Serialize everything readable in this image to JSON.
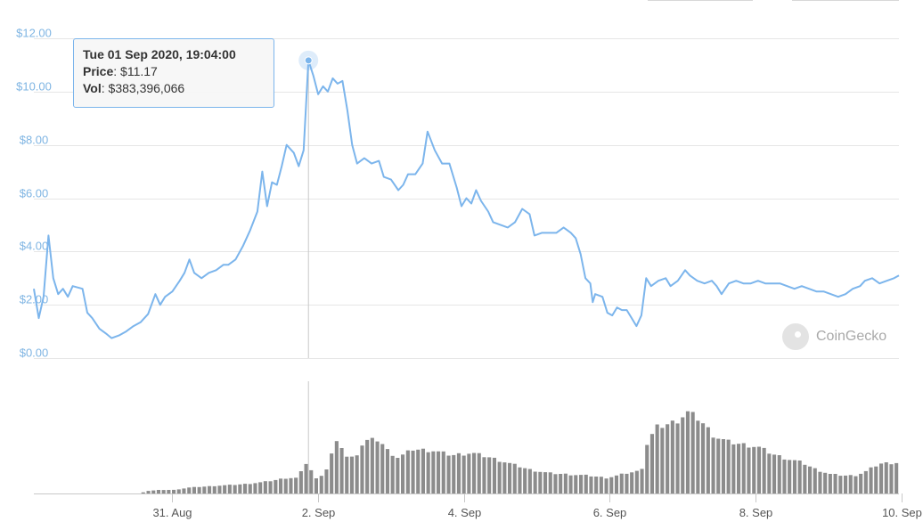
{
  "tooltip": {
    "date": "Tue 01 Sep 2020, 19:04:00",
    "price_label": "Price",
    "price_value": "$11.17",
    "vol_label": "Vol",
    "vol_value": "$383,396,066"
  },
  "watermark": "CoinGecko",
  "colors": {
    "line": "#7cb5ec",
    "volume": "#8c8c8c",
    "grid": "#e6e6e6",
    "axis_text": "#7fb5e3"
  },
  "chart_data": [
    {
      "type": "line",
      "title": "",
      "series": [
        {
          "values": [
            [
              0.0,
              2.6
            ],
            [
              0.1,
              1.5
            ],
            [
              0.2,
              2.3
            ],
            [
              0.3,
              4.6
            ],
            [
              0.4,
              3.0
            ],
            [
              0.5,
              2.4
            ],
            [
              0.6,
              2.6
            ],
            [
              0.7,
              2.3
            ],
            [
              0.8,
              2.7
            ],
            [
              1.0,
              2.6
            ],
            [
              1.1,
              1.7
            ],
            [
              1.2,
              1.5
            ],
            [
              1.35,
              1.1
            ],
            [
              1.5,
              0.9
            ],
            [
              1.6,
              0.75
            ],
            [
              1.75,
              0.85
            ],
            [
              1.9,
              1.0
            ],
            [
              2.05,
              1.2
            ],
            [
              2.2,
              1.35
            ],
            [
              2.35,
              1.65
            ],
            [
              2.5,
              2.4
            ],
            [
              2.6,
              2.0
            ],
            [
              2.7,
              2.3
            ],
            [
              2.85,
              2.5
            ],
            [
              3.0,
              2.9
            ],
            [
              3.1,
              3.2
            ],
            [
              3.2,
              3.7
            ],
            [
              3.3,
              3.2
            ],
            [
              3.45,
              3.0
            ],
            [
              3.6,
              3.2
            ],
            [
              3.75,
              3.3
            ],
            [
              3.9,
              3.5
            ],
            [
              4.0,
              3.5
            ],
            [
              4.15,
              3.7
            ],
            [
              4.3,
              4.2
            ],
            [
              4.45,
              4.8
            ],
            [
              4.6,
              5.5
            ],
            [
              4.7,
              7.0
            ],
            [
              4.8,
              5.7
            ],
            [
              4.9,
              6.6
            ],
            [
              5.0,
              6.5
            ],
            [
              5.1,
              7.2
            ],
            [
              5.2,
              8.0
            ],
            [
              5.35,
              7.7
            ],
            [
              5.45,
              7.2
            ],
            [
              5.55,
              7.8
            ],
            [
              5.65,
              11.17
            ],
            [
              5.75,
              10.6
            ],
            [
              5.85,
              9.9
            ],
            [
              5.95,
              10.2
            ],
            [
              6.05,
              10.0
            ],
            [
              6.15,
              10.5
            ],
            [
              6.25,
              10.3
            ],
            [
              6.35,
              10.4
            ],
            [
              6.45,
              9.3
            ],
            [
              6.55,
              8.0
            ],
            [
              6.65,
              7.3
            ],
            [
              6.8,
              7.5
            ],
            [
              6.95,
              7.3
            ],
            [
              7.1,
              7.4
            ],
            [
              7.2,
              6.8
            ],
            [
              7.35,
              6.7
            ],
            [
              7.5,
              6.3
            ],
            [
              7.6,
              6.5
            ],
            [
              7.7,
              6.9
            ],
            [
              7.85,
              6.9
            ],
            [
              8.0,
              7.3
            ],
            [
              8.1,
              8.5
            ],
            [
              8.25,
              7.8
            ],
            [
              8.4,
              7.3
            ],
            [
              8.55,
              7.3
            ],
            [
              8.7,
              6.4
            ],
            [
              8.8,
              5.7
            ],
            [
              8.9,
              6.0
            ],
            [
              9.0,
              5.8
            ],
            [
              9.1,
              6.3
            ],
            [
              9.2,
              5.9
            ],
            [
              9.35,
              5.5
            ],
            [
              9.45,
              5.1
            ],
            [
              9.6,
              5.0
            ],
            [
              9.75,
              4.9
            ],
            [
              9.9,
              5.1
            ],
            [
              10.05,
              5.6
            ],
            [
              10.2,
              5.4
            ],
            [
              10.3,
              4.6
            ],
            [
              10.45,
              4.7
            ],
            [
              10.6,
              4.7
            ],
            [
              10.75,
              4.7
            ],
            [
              10.9,
              4.9
            ],
            [
              11.05,
              4.7
            ],
            [
              11.15,
              4.5
            ],
            [
              11.25,
              3.9
            ],
            [
              11.35,
              3.0
            ],
            [
              11.45,
              2.8
            ],
            [
              11.5,
              2.1
            ],
            [
              11.55,
              2.4
            ],
            [
              11.7,
              2.3
            ],
            [
              11.8,
              1.7
            ],
            [
              11.9,
              1.6
            ],
            [
              12.0,
              1.9
            ],
            [
              12.1,
              1.8
            ],
            [
              12.2,
              1.8
            ],
            [
              12.3,
              1.5
            ],
            [
              12.4,
              1.2
            ],
            [
              12.5,
              1.6
            ],
            [
              12.6,
              3.0
            ],
            [
              12.7,
              2.7
            ],
            [
              12.85,
              2.9
            ],
            [
              13.0,
              3.0
            ],
            [
              13.1,
              2.7
            ],
            [
              13.25,
              2.9
            ],
            [
              13.4,
              3.3
            ],
            [
              13.5,
              3.1
            ],
            [
              13.65,
              2.9
            ],
            [
              13.8,
              2.8
            ],
            [
              13.95,
              2.9
            ],
            [
              14.05,
              2.7
            ],
            [
              14.15,
              2.4
            ],
            [
              14.3,
              2.8
            ],
            [
              14.45,
              2.9
            ],
            [
              14.6,
              2.8
            ],
            [
              14.75,
              2.8
            ],
            [
              14.9,
              2.9
            ],
            [
              15.05,
              2.8
            ],
            [
              15.2,
              2.8
            ],
            [
              15.35,
              2.8
            ],
            [
              15.5,
              2.7
            ],
            [
              15.65,
              2.6
            ],
            [
              15.8,
              2.7
            ],
            [
              15.95,
              2.6
            ],
            [
              16.1,
              2.5
            ],
            [
              16.25,
              2.5
            ],
            [
              16.4,
              2.4
            ],
            [
              16.55,
              2.3
            ],
            [
              16.7,
              2.4
            ],
            [
              16.85,
              2.6
            ],
            [
              17.0,
              2.7
            ],
            [
              17.1,
              2.9
            ],
            [
              17.25,
              3.0
            ],
            [
              17.4,
              2.8
            ],
            [
              17.55,
              2.9
            ],
            [
              17.7,
              3.0
            ],
            [
              17.8,
              3.1
            ]
          ]
        }
      ],
      "y_ticks": [
        "$0.00",
        "$2.00",
        "$4.00",
        "$6.00",
        "$8.00",
        "$10.00",
        "$12.00"
      ],
      "y_tick_values": [
        0,
        2,
        4,
        6,
        8,
        10,
        12
      ],
      "ylim": [
        0,
        12
      ],
      "x_ticks": [
        "31. Aug",
        "2. Sep",
        "4. Sep",
        "6. Sep",
        "8. Sep",
        "10. Sep"
      ],
      "x_tick_values": [
        2.85,
        5.85,
        8.85,
        11.85,
        14.85,
        17.85
      ],
      "xlim": [
        0,
        17.8
      ],
      "crosshair_x": 5.65,
      "grid": true
    },
    {
      "type": "bar",
      "title": "volume",
      "series": [
        {
          "keyframes": [
            [
              0,
              0.0
            ],
            [
              2.2,
              0.0
            ],
            [
              2.3,
              0.02
            ],
            [
              2.6,
              0.03
            ],
            [
              2.9,
              0.03
            ],
            [
              3.2,
              0.05
            ],
            [
              3.6,
              0.06
            ],
            [
              4.0,
              0.07
            ],
            [
              4.4,
              0.08
            ],
            [
              4.8,
              0.1
            ],
            [
              5.2,
              0.13
            ],
            [
              5.4,
              0.13
            ],
            [
              5.5,
              0.18
            ],
            [
              5.65,
              0.29
            ],
            [
              5.7,
              0.2
            ],
            [
              5.8,
              0.12
            ],
            [
              6.0,
              0.18
            ],
            [
              6.1,
              0.3
            ],
            [
              6.2,
              0.42
            ],
            [
              6.3,
              0.42
            ],
            [
              6.45,
              0.3
            ],
            [
              6.6,
              0.3
            ],
            [
              6.8,
              0.44
            ],
            [
              7.1,
              0.45
            ],
            [
              7.3,
              0.35
            ],
            [
              7.5,
              0.3
            ],
            [
              7.8,
              0.37
            ],
            [
              8.2,
              0.36
            ],
            [
              8.6,
              0.32
            ],
            [
              9.0,
              0.34
            ],
            [
              9.4,
              0.3
            ],
            [
              9.8,
              0.25
            ],
            [
              10.2,
              0.2
            ],
            [
              10.6,
              0.17
            ],
            [
              11.0,
              0.16
            ],
            [
              11.4,
              0.15
            ],
            [
              11.8,
              0.13
            ],
            [
              12.2,
              0.17
            ],
            [
              12.5,
              0.19
            ],
            [
              12.6,
              0.4
            ],
            [
              12.8,
              0.55
            ],
            [
              13.2,
              0.6
            ],
            [
              13.45,
              0.68
            ],
            [
              13.7,
              0.62
            ],
            [
              14.0,
              0.48
            ],
            [
              14.3,
              0.43
            ],
            [
              14.6,
              0.41
            ],
            [
              14.9,
              0.39
            ],
            [
              15.2,
              0.33
            ],
            [
              15.5,
              0.29
            ],
            [
              15.8,
              0.26
            ],
            [
              16.1,
              0.2
            ],
            [
              16.4,
              0.16
            ],
            [
              16.7,
              0.15
            ],
            [
              16.9,
              0.15
            ],
            [
              17.1,
              0.18
            ],
            [
              17.4,
              0.25
            ],
            [
              17.8,
              0.26
            ]
          ],
          "count": 170
        }
      ],
      "ylim": [
        0,
        1
      ]
    }
  ]
}
